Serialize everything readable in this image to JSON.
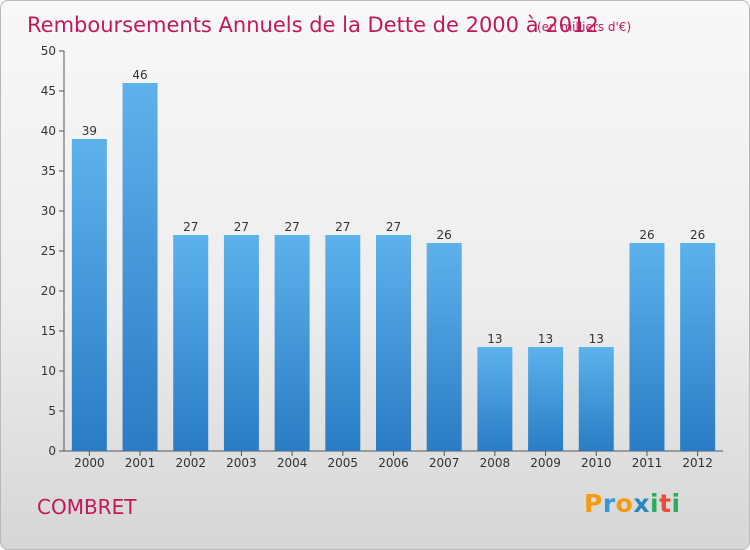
{
  "chart_data": {
    "type": "bar",
    "title": "Remboursements Annuels de la Dette de 2000 à 2012",
    "subtitle": "(en milliers d'€)",
    "categories": [
      "2000",
      "2001",
      "2002",
      "2003",
      "2004",
      "2005",
      "2006",
      "2007",
      "2008",
      "2009",
      "2010",
      "2011",
      "2012"
    ],
    "values": [
      39,
      46,
      27,
      27,
      27,
      27,
      27,
      26,
      13,
      13,
      13,
      26,
      26
    ],
    "ylim": [
      0,
      50
    ],
    "yticks": [
      0,
      5,
      10,
      15,
      20,
      25,
      30,
      35,
      40,
      45,
      50
    ],
    "xlabel": "",
    "ylabel": "",
    "grid": false,
    "bar_color": "#3d96d9",
    "title_color": "#c2185b"
  },
  "commune": "COMBRET",
  "brand": {
    "letters": [
      "P",
      "r",
      "o",
      "x",
      "i",
      "t",
      "i"
    ],
    "colors": [
      "#f39c12",
      "#3498db",
      "#f39c12",
      "#2e86c1",
      "#27ae60",
      "#e74c3c",
      "#27ae60"
    ]
  }
}
